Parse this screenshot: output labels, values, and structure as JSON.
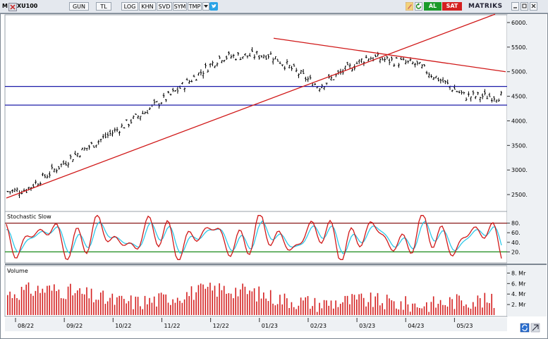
{
  "toolbar": {
    "menu_m": "M",
    "symbol": "XU100",
    "buttons": [
      "GUN",
      "TL",
      "LOG",
      "KHN",
      "SVD",
      "SYM",
      "TMP"
    ],
    "badge_al": "AL",
    "badge_sat": "SAT",
    "brand": "MATRIKS",
    "colors": {
      "al": "#1a9a2a",
      "sat": "#d42020"
    }
  },
  "chart_data": [
    {
      "type": "candlestick",
      "panel": "price",
      "x_ticks": [
        "08/22",
        "09/22",
        "10/22",
        "11/22",
        "12/22",
        "01/23",
        "02/23",
        "03/23",
        "04/23",
        "05/23"
      ],
      "y_ticks": [
        6000,
        5500,
        5000,
        4500,
        4000,
        3500,
        3000,
        2500
      ],
      "y_tick_labels": [
        "6000.",
        "5500.",
        "5000.",
        "4500.",
        "4000.",
        "3500.",
        "3000.",
        "2500."
      ],
      "ylim": [
        2200,
        6100
      ],
      "approx_close": [
        {
          "period": "08/22",
          "value": 2600
        },
        {
          "period": "09/22",
          "value": 3300
        },
        {
          "period": "10/22",
          "value": 3900
        },
        {
          "period": "11/22",
          "value": 4550
        },
        {
          "period": "12/22",
          "value": 5300
        },
        {
          "period": "01/23",
          "value": 5350
        },
        {
          "period": "02/23",
          "value": 4700
        },
        {
          "period": "03/23",
          "value": 5300
        },
        {
          "period": "04/23",
          "value": 5150
        },
        {
          "period": "05/23",
          "value": 4500
        }
      ],
      "horizontal_lines": [
        4700,
        4320
      ],
      "colors": {
        "bars": "#000000",
        "support": "#1c1ca8",
        "trend": "#d01818"
      }
    },
    {
      "type": "line",
      "panel": "oscillator",
      "title": "Stochastic Slow",
      "y_ticks": [
        80,
        60,
        40,
        20
      ],
      "y_tick_labels": [
        "80.",
        "60.",
        "40.",
        "20."
      ],
      "ylim": [
        0,
        100
      ],
      "levels": [
        80,
        20
      ],
      "series_colors": {
        "k": "#d01818",
        "d": "#2ec8e8",
        "upper": "#8a1a1a",
        "lower": "#1a8a1a"
      }
    },
    {
      "type": "bar",
      "panel": "volume",
      "title": "Volume",
      "y_ticks": [
        8,
        6,
        4,
        2
      ],
      "y_tick_labels": [
        "8. Mr",
        "6. Mr",
        "4. Mr",
        "2. Mr"
      ],
      "ylim": [
        0,
        9
      ],
      "color": "#d42020"
    }
  ]
}
